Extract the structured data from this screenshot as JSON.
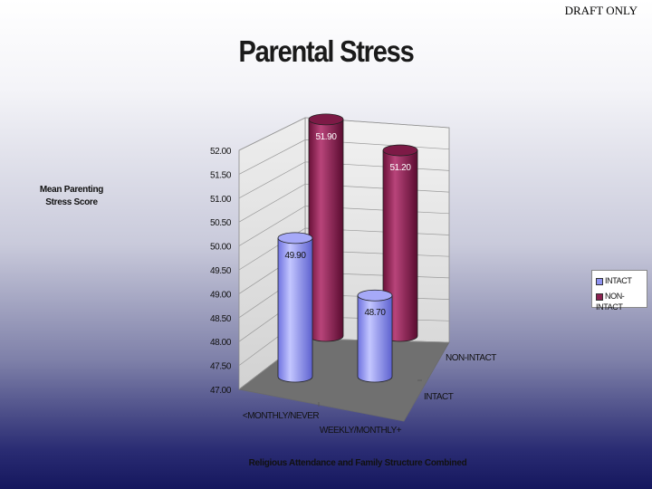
{
  "watermark": "DRAFT ONLY",
  "chart_data": {
    "type": "bar",
    "title": "Parental Stress",
    "ylabel": "Mean Parenting Stress Score",
    "xlabel": "Religious Attendance and Family Structure Combined",
    "ylim": [
      47.0,
      52.0
    ],
    "yticks": [
      "47.00",
      "47.50",
      "48.00",
      "48.50",
      "49.00",
      "49.50",
      "50.00",
      "50.50",
      "51.00",
      "51.50",
      "52.00"
    ],
    "categories": [
      "<MONTHLY/NEVER",
      "WEEKLY/MONTHLY+"
    ],
    "depth_categories": [
      "INTACT",
      "NON-INTACT"
    ],
    "series": [
      {
        "name": "INTACT",
        "values": [
          49.9,
          48.7
        ],
        "labels": [
          "49.90",
          "48.70"
        ],
        "color": "#8f93f2"
      },
      {
        "name": "NON-INTACT",
        "values": [
          51.9,
          51.2
        ],
        "labels": [
          "51.90",
          "51.20"
        ],
        "color": "#8c2150"
      }
    ],
    "legend": "right",
    "grid": true
  }
}
